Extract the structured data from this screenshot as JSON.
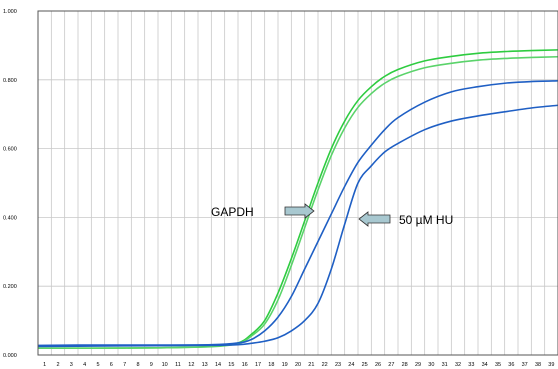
{
  "chart_data": {
    "type": "line",
    "x_ticks": [
      "1",
      "2",
      "3",
      "4",
      "5",
      "6",
      "7",
      "8",
      "9",
      "10",
      "11",
      "12",
      "13",
      "14",
      "15",
      "16",
      "17",
      "18",
      "19",
      "20",
      "21",
      "22",
      "23",
      "24",
      "25",
      "26",
      "27",
      "28",
      "29",
      "30",
      "31",
      "32",
      "33",
      "34",
      "35",
      "36",
      "37",
      "38",
      "39"
    ],
    "y_ticks": [
      "0.000",
      "0.200",
      "0.400",
      "0.600",
      "0.800",
      "1.000"
    ],
    "ylim": [
      0,
      1.0
    ],
    "xlim": [
      1,
      40
    ],
    "grid": true,
    "series": [
      {
        "color": "#2ecc40",
        "points": [
          [
            1,
            0.02
          ],
          [
            5,
            0.02
          ],
          [
            10,
            0.021
          ],
          [
            14,
            0.025
          ],
          [
            16,
            0.035
          ],
          [
            17,
            0.06
          ],
          [
            18,
            0.1
          ],
          [
            19,
            0.18
          ],
          [
            20,
            0.28
          ],
          [
            21,
            0.39
          ],
          [
            22,
            0.5
          ],
          [
            23,
            0.6
          ],
          [
            24,
            0.68
          ],
          [
            25,
            0.74
          ],
          [
            26,
            0.78
          ],
          [
            27,
            0.81
          ],
          [
            28,
            0.83
          ],
          [
            30,
            0.855
          ],
          [
            32,
            0.868
          ],
          [
            34,
            0.877
          ],
          [
            36,
            0.882
          ],
          [
            38,
            0.885
          ],
          [
            40,
            0.887
          ]
        ]
      },
      {
        "color": "#5ad36a",
        "points": [
          [
            1,
            0.02
          ],
          [
            5,
            0.02
          ],
          [
            10,
            0.021
          ],
          [
            14,
            0.024
          ],
          [
            16,
            0.033
          ],
          [
            17,
            0.055
          ],
          [
            18,
            0.09
          ],
          [
            19,
            0.16
          ],
          [
            20,
            0.26
          ],
          [
            21,
            0.37
          ],
          [
            22,
            0.48
          ],
          [
            23,
            0.58
          ],
          [
            24,
            0.66
          ],
          [
            25,
            0.72
          ],
          [
            26,
            0.76
          ],
          [
            27,
            0.79
          ],
          [
            28,
            0.81
          ],
          [
            30,
            0.835
          ],
          [
            32,
            0.848
          ],
          [
            34,
            0.857
          ],
          [
            36,
            0.862
          ],
          [
            38,
            0.865
          ],
          [
            40,
            0.867
          ]
        ]
      },
      {
        "color": "#1f5fc4",
        "points": [
          [
            1,
            0.028
          ],
          [
            5,
            0.029
          ],
          [
            10,
            0.029
          ],
          [
            14,
            0.03
          ],
          [
            16,
            0.035
          ],
          [
            17,
            0.045
          ],
          [
            18,
            0.07
          ],
          [
            19,
            0.11
          ],
          [
            20,
            0.17
          ],
          [
            21,
            0.25
          ],
          [
            22,
            0.33
          ],
          [
            23,
            0.41
          ],
          [
            24,
            0.49
          ],
          [
            25,
            0.56
          ],
          [
            26,
            0.61
          ],
          [
            27,
            0.655
          ],
          [
            28,
            0.69
          ],
          [
            30,
            0.735
          ],
          [
            32,
            0.765
          ],
          [
            34,
            0.78
          ],
          [
            36,
            0.79
          ],
          [
            38,
            0.795
          ],
          [
            40,
            0.797
          ]
        ]
      },
      {
        "color": "#1f5fc4",
        "points": [
          [
            1,
            0.025
          ],
          [
            5,
            0.026
          ],
          [
            10,
            0.027
          ],
          [
            14,
            0.028
          ],
          [
            16,
            0.03
          ],
          [
            17,
            0.034
          ],
          [
            18,
            0.04
          ],
          [
            19,
            0.05
          ],
          [
            20,
            0.07
          ],
          [
            21,
            0.1
          ],
          [
            22,
            0.15
          ],
          [
            23,
            0.25
          ],
          [
            24,
            0.38
          ],
          [
            25,
            0.5
          ],
          [
            26,
            0.55
          ],
          [
            27,
            0.59
          ],
          [
            28,
            0.615
          ],
          [
            30,
            0.655
          ],
          [
            32,
            0.68
          ],
          [
            34,
            0.695
          ],
          [
            36,
            0.707
          ],
          [
            38,
            0.718
          ],
          [
            40,
            0.726
          ]
        ]
      }
    ],
    "annotations": [
      {
        "text": "GAPDH",
        "arrow": "right"
      },
      {
        "text": "50 µM HU",
        "arrow": "left"
      }
    ]
  }
}
